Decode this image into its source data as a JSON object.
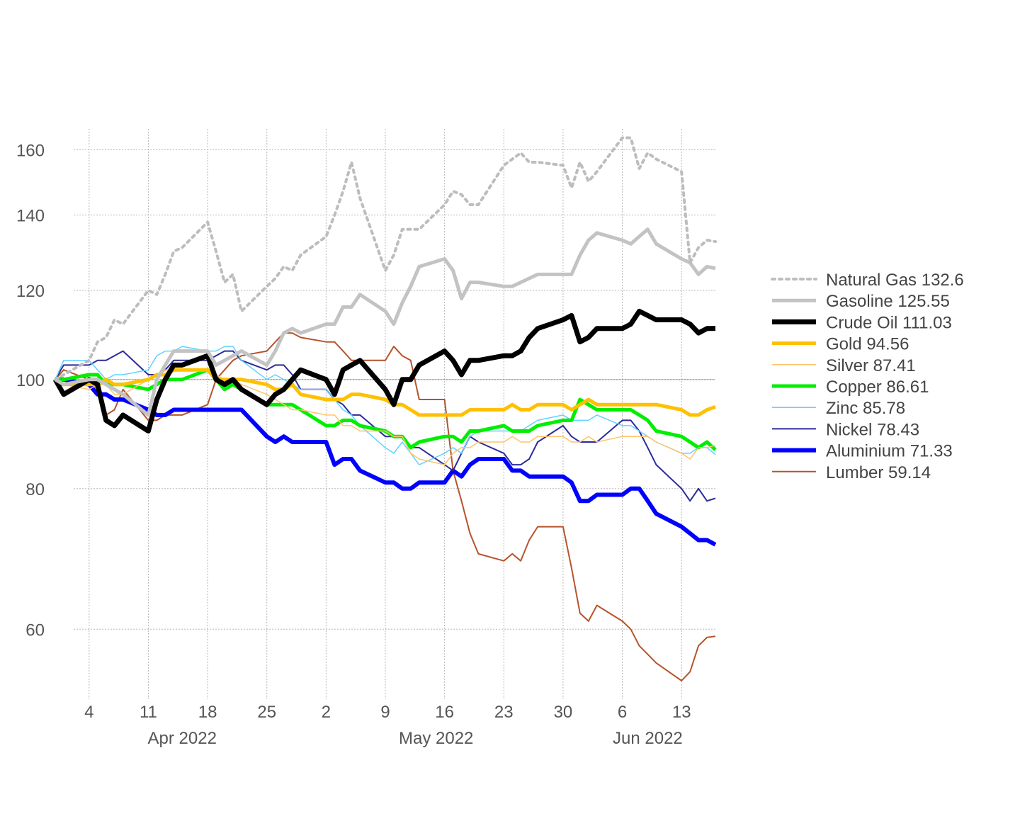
{
  "chart_data": {
    "type": "line",
    "title": "",
    "xlabel": "",
    "ylabel": "",
    "y_scale": "log",
    "ylim": [
      52,
      167
    ],
    "xlim": [
      "2022-03-31",
      "2022-06-17"
    ],
    "grid": true,
    "legend_position": "right",
    "y_ticks": [
      60,
      80,
      100,
      120,
      140,
      160
    ],
    "x_ticks": [
      {
        "date": "2022-04-04",
        "label": "4"
      },
      {
        "date": "2022-04-11",
        "label": "11"
      },
      {
        "date": "2022-04-18",
        "label": "18"
      },
      {
        "date": "2022-04-25",
        "label": "25"
      },
      {
        "date": "2022-05-02",
        "label": "2"
      },
      {
        "date": "2022-05-09",
        "label": "9"
      },
      {
        "date": "2022-05-16",
        "label": "16"
      },
      {
        "date": "2022-05-23",
        "label": "23"
      },
      {
        "date": "2022-05-30",
        "label": "30"
      },
      {
        "date": "2022-06-06",
        "label": "6"
      },
      {
        "date": "2022-06-13",
        "label": "13"
      }
    ],
    "month_labels": [
      {
        "date": "2022-04-15",
        "label": "Apr 2022"
      },
      {
        "date": "2022-05-15",
        "label": "May 2022"
      },
      {
        "date": "2022-06-09",
        "label": "Jun 2022"
      }
    ],
    "reference_line": 100,
    "x": [
      "2022-03-31",
      "2022-04-01",
      "2022-04-04",
      "2022-04-05",
      "2022-04-06",
      "2022-04-07",
      "2022-04-08",
      "2022-04-11",
      "2022-04-12",
      "2022-04-13",
      "2022-04-14",
      "2022-04-15",
      "2022-04-18",
      "2022-04-19",
      "2022-04-20",
      "2022-04-21",
      "2022-04-22",
      "2022-04-25",
      "2022-04-26",
      "2022-04-27",
      "2022-04-28",
      "2022-04-29",
      "2022-05-02",
      "2022-05-03",
      "2022-05-04",
      "2022-05-05",
      "2022-05-06",
      "2022-05-09",
      "2022-05-10",
      "2022-05-11",
      "2022-05-12",
      "2022-05-13",
      "2022-05-16",
      "2022-05-17",
      "2022-05-18",
      "2022-05-19",
      "2022-05-20",
      "2022-05-23",
      "2022-05-24",
      "2022-05-25",
      "2022-05-26",
      "2022-05-27",
      "2022-05-30",
      "2022-05-31",
      "2022-06-01",
      "2022-06-02",
      "2022-06-03",
      "2022-06-06",
      "2022-06-07",
      "2022-06-08",
      "2022-06-09",
      "2022-06-10",
      "2022-06-13",
      "2022-06-14",
      "2022-06-15",
      "2022-06-16",
      "2022-06-17"
    ],
    "series": [
      {
        "name": "Natural Gas",
        "label": "Natural Gas 132.6",
        "color": "#bdbdbd",
        "width": 4,
        "dash": "4 6",
        "values": [
          100,
          101,
          104,
          108,
          109,
          113,
          112,
          120,
          119,
          124,
          130,
          131,
          138,
          130,
          122,
          124,
          115,
          121,
          123,
          126,
          125,
          129,
          134,
          140,
          147,
          156,
          145,
          125,
          129,
          136,
          136,
          136,
          143,
          147,
          146,
          143,
          143,
          155,
          157,
          159,
          156,
          156,
          155,
          148,
          156,
          150,
          153,
          164,
          164,
          154,
          159,
          157,
          153,
          127,
          131,
          133,
          132.6
        ]
      },
      {
        "name": "Gasoline",
        "label": "Gasoline 125.55",
        "color": "#c3c3c3",
        "width": 5,
        "dash": "",
        "values": [
          100,
          99,
          100,
          100,
          99,
          98,
          97,
          93,
          100,
          103,
          106,
          106,
          106,
          103,
          104,
          105,
          106,
          103,
          106,
          110,
          111,
          110,
          112,
          112,
          116,
          116,
          119,
          115,
          112,
          117,
          121,
          126,
          128,
          125,
          118,
          122,
          122,
          121,
          121,
          122,
          123,
          124,
          124,
          124,
          129,
          133,
          135,
          133,
          132,
          134,
          136,
          132,
          128,
          127,
          124,
          126,
          125.55
        ]
      },
      {
        "name": "Crude Oil",
        "label": "Crude Oil 111.03",
        "color": "#000000",
        "width": 7,
        "dash": "",
        "values": [
          100,
          97,
          100,
          99,
          92,
          91,
          93,
          90,
          96,
          100,
          103,
          103,
          105,
          100,
          99,
          100,
          98,
          95,
          97,
          98,
          100,
          102,
          100,
          97,
          102,
          103,
          104,
          98,
          95,
          100,
          100,
          103,
          106,
          104,
          101,
          104,
          104,
          105,
          105,
          106,
          109,
          111,
          113,
          114,
          108,
          109,
          111,
          111,
          112,
          115,
          114,
          113,
          113,
          112,
          110,
          111,
          111.03
        ]
      },
      {
        "name": "Gold",
        "label": "Gold 94.56",
        "color": "#ffc000",
        "width": 5,
        "dash": "",
        "values": [
          100,
          99,
          99,
          99,
          100,
          99,
          99,
          100,
          101,
          101,
          102,
          102,
          102,
          100,
          100,
          100,
          100,
          99,
          98,
          98,
          99,
          97,
          96,
          96,
          96,
          97,
          97,
          96,
          95,
          95,
          94,
          93,
          93,
          93,
          93,
          94,
          94,
          94,
          95,
          94,
          94,
          95,
          95,
          94,
          95,
          96,
          95,
          95,
          95,
          95,
          95,
          95,
          94,
          93,
          93,
          94,
          94.56
        ]
      },
      {
        "name": "Silver",
        "label": "Silver 87.41",
        "color": "#ffc36a",
        "width": 1.5,
        "dash": "",
        "values": [
          100,
          99,
          98,
          99,
          99,
          97,
          97,
          100,
          101,
          102,
          102,
          102,
          102,
          101,
          100,
          100,
          99,
          97,
          96,
          95,
          94,
          94,
          93,
          93,
          91,
          91,
          90,
          90,
          89,
          89,
          86,
          85,
          84,
          86,
          87,
          87,
          88,
          88,
          89,
          88,
          88,
          89,
          89,
          88,
          88,
          89,
          88,
          89,
          89,
          89,
          89,
          88,
          86,
          85,
          87,
          87,
          87.41
        ]
      },
      {
        "name": "Copper",
        "label": "Copper 86.61",
        "color": "#00ee00",
        "width": 5,
        "dash": "",
        "values": [
          100,
          100,
          101,
          101,
          99,
          99,
          99,
          98,
          99,
          100,
          100,
          100,
          102,
          100,
          98,
          99,
          98,
          95,
          95,
          95,
          95,
          94,
          91,
          91,
          92,
          92,
          91,
          90,
          89,
          89,
          87,
          88,
          89,
          89,
          88,
          90,
          90,
          91,
          90,
          90,
          90,
          91,
          92,
          92,
          96,
          95,
          94,
          94,
          94,
          93,
          92,
          90,
          89,
          88,
          87,
          88,
          86.61
        ]
      },
      {
        "name": "Zinc",
        "label": "Zinc 85.78",
        "color": "#5fd3ff",
        "width": 1.5,
        "dash": "",
        "values": [
          100,
          104,
          104,
          102,
          100,
          101,
          101,
          102,
          105,
          106,
          106,
          107,
          106,
          106,
          107,
          107,
          104,
          100,
          101,
          100,
          99,
          98,
          98,
          96,
          94,
          93,
          91,
          87,
          86,
          88,
          86,
          84,
          86,
          87,
          86,
          89,
          90,
          90,
          90,
          90,
          91,
          92,
          93,
          92,
          92,
          92,
          93,
          91,
          91,
          90,
          89,
          88,
          86,
          86,
          87,
          87,
          85.78
        ]
      },
      {
        "name": "Nickel",
        "label": "Nickel 78.43",
        "color": "#2b2b9c",
        "width": 2,
        "dash": "",
        "values": [
          100,
          103,
          103,
          104,
          104,
          105,
          106,
          101,
          101,
          102,
          104,
          104,
          104,
          105,
          106,
          106,
          104,
          102,
          103,
          103,
          101,
          98,
          98,
          96,
          95,
          93,
          93,
          89,
          89,
          89,
          87,
          87,
          84,
          83,
          86,
          89,
          88,
          86,
          84,
          84,
          85,
          88,
          91,
          89,
          88,
          88,
          88,
          92,
          92,
          90,
          87,
          84,
          80,
          78,
          80,
          78,
          78.43
        ]
      },
      {
        "name": "Aluminium",
        "label": "Aluminium 71.33",
        "color": "#0000ff",
        "width": 6,
        "dash": "",
        "values": [
          100,
          100,
          99,
          97,
          97,
          96,
          96,
          94,
          93,
          93,
          94,
          94,
          94,
          94,
          94,
          94,
          94,
          89,
          88,
          89,
          88,
          88,
          88,
          84,
          85,
          85,
          83,
          81,
          81,
          80,
          80,
          81,
          81,
          83,
          82,
          84,
          85,
          85,
          83,
          83,
          82,
          82,
          82,
          81,
          78,
          78,
          79,
          79,
          80,
          80,
          78,
          76,
          74,
          73,
          72,
          72,
          71.33
        ]
      },
      {
        "name": "Lumber",
        "label": "Lumber 59.14",
        "color": "#b5542c",
        "width": 2,
        "dash": "",
        "values": [
          100,
          102,
          100,
          98,
          93,
          94,
          98,
          92,
          92,
          93,
          93,
          93,
          95,
          100,
          102,
          104,
          105,
          106,
          108,
          110,
          110,
          109,
          108,
          108,
          106,
          104,
          104,
          104,
          107,
          105,
          104,
          96,
          96,
          83,
          78,
          73,
          70,
          69,
          70,
          69,
          72,
          74,
          74,
          68,
          62,
          61,
          63,
          61,
          60,
          58,
          57,
          56,
          54,
          55,
          58,
          59,
          59.14
        ]
      }
    ]
  }
}
